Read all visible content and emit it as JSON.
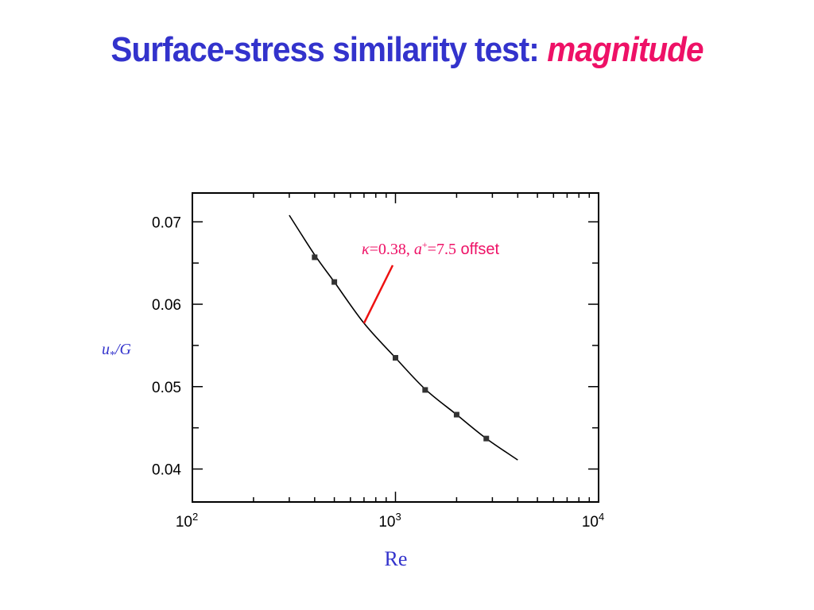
{
  "title": {
    "main": "Surface-stress similarity test:",
    "emphasis": "magnitude"
  },
  "colors": {
    "title": "#3333cc",
    "emphasis": "#ee1166",
    "annotation": "#ee1166",
    "axis_label": "#3333cc",
    "curve": "#000000",
    "annotation_line": "#ee1111"
  },
  "chart_data": {
    "type": "scatter",
    "title": "",
    "xlabel": "Re",
    "ylabel": "u*/G",
    "x_scale": "log",
    "xlim": [
      100,
      10000
    ],
    "ylim": [
      0.036,
      0.0735
    ],
    "x_ticks": [
      {
        "value": 100,
        "base": "10",
        "exp": "2"
      },
      {
        "value": 1000,
        "base": "10",
        "exp": "3"
      },
      {
        "value": 10000,
        "base": "10",
        "exp": "4"
      }
    ],
    "y_ticks": [
      "0.04",
      "0.05",
      "0.06",
      "0.07"
    ],
    "grid": false,
    "series": [
      {
        "kind": "points",
        "x": [
          400,
          500,
          1000,
          1400,
          2000,
          2800
        ],
        "y": [
          0.0657,
          0.0627,
          0.0535,
          0.0496,
          0.0466,
          0.0437
        ]
      },
      {
        "kind": "curve",
        "x": [
          300,
          400,
          500,
          700,
          1000,
          1400,
          2000,
          2800,
          4000
        ],
        "y": [
          0.0708,
          0.066,
          0.0627,
          0.0577,
          0.0535,
          0.0497,
          0.0466,
          0.0437,
          0.0411
        ]
      }
    ],
    "annotation": {
      "kappa_symbol": "κ",
      "kappa_value": "=0.38, ",
      "a_symbol": "a",
      "a_sup": "+",
      "a_value": "=7.5",
      "suffix": " offset",
      "points_to": {
        "x": 700,
        "y": 0.0577
      }
    }
  }
}
